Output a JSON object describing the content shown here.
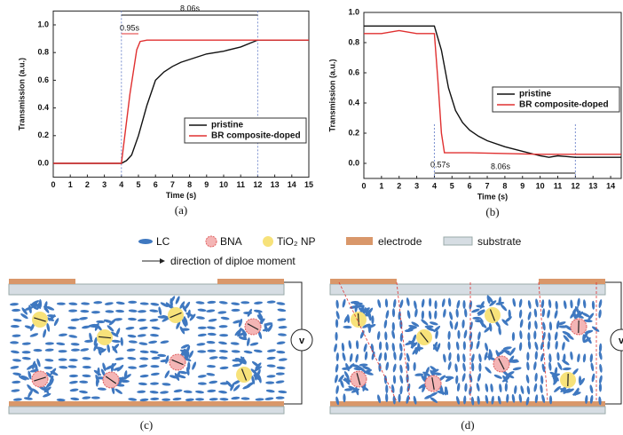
{
  "chart_data": [
    {
      "type": "line",
      "caption": "(a)",
      "xlabel": "Time (s)",
      "ylabel": "Transmission (a.u.)",
      "xlim": [
        0,
        15
      ],
      "xticks": [
        0,
        1,
        2,
        3,
        4,
        5,
        6,
        7,
        8,
        9,
        10,
        11,
        12,
        13,
        14,
        15
      ],
      "ylim": [
        -0.1,
        1.1
      ],
      "yticks": [
        {
          "value": 0,
          "label": "0.0"
        },
        0.2,
        0.4,
        0.6,
        0.8,
        {
          "value": 1,
          "label": "1.0"
        }
      ],
      "legend": "lower right",
      "annotations": [
        "8.06s",
        "0.95s"
      ],
      "series": [
        {
          "name": "pristine",
          "color": "#111111",
          "x": [
            0,
            4,
            4.3,
            4.6,
            5,
            5.5,
            6,
            6.5,
            7,
            7.5,
            8,
            8.5,
            9,
            10,
            11,
            12,
            13,
            15
          ],
          "values": [
            0,
            0,
            0.02,
            0.06,
            0.2,
            0.42,
            0.6,
            0.66,
            0.7,
            0.73,
            0.75,
            0.77,
            0.79,
            0.81,
            0.84,
            0.89,
            0.89,
            0.89
          ]
        },
        {
          "name": "BR composite-doped",
          "color": "#e03030",
          "x": [
            0,
            4,
            4.5,
            4.9,
            5.1,
            5.5,
            9,
            12,
            15
          ],
          "values": [
            0,
            0,
            0.5,
            0.82,
            0.88,
            0.89,
            0.89,
            0.89,
            0.89
          ]
        }
      ]
    },
    {
      "type": "line",
      "caption": "(b)",
      "xlabel": "Time (s)",
      "ylabel": "Transmission (a.u.)",
      "xlim": [
        0,
        14.6
      ],
      "xticks": [
        0,
        1,
        2,
        3,
        4,
        5,
        6,
        7,
        8,
        9,
        10,
        11,
        12,
        13,
        14
      ],
      "ylim": [
        -0.1,
        1.0
      ],
      "yticks": [
        {
          "value": 0,
          "label": "0.0"
        },
        0.2,
        0.4,
        0.6,
        0.8,
        {
          "value": 1,
          "label": "1.0"
        }
      ],
      "legend": "center right",
      "annotations": [
        "0.57s",
        "8.06s"
      ],
      "series": [
        {
          "name": "pristine",
          "color": "#111111",
          "x": [
            0,
            2,
            4,
            4.4,
            4.8,
            5.2,
            5.6,
            6,
            6.5,
            7,
            8,
            9,
            10,
            10.5,
            11,
            12,
            14.6
          ],
          "values": [
            0.91,
            0.91,
            0.91,
            0.75,
            0.5,
            0.35,
            0.27,
            0.22,
            0.18,
            0.15,
            0.11,
            0.08,
            0.05,
            0.04,
            0.05,
            0.04,
            0.04
          ]
        },
        {
          "name": "BR composite-doped",
          "color": "#e03030",
          "x": [
            0,
            1,
            2,
            3,
            4,
            4.2,
            4.4,
            4.57,
            6,
            10,
            14.6
          ],
          "values": [
            0.86,
            0.86,
            0.88,
            0.86,
            0.86,
            0.55,
            0.2,
            0.07,
            0.07,
            0.06,
            0.06
          ]
        }
      ]
    }
  ],
  "diagram": {
    "legend": [
      "LC",
      "BNA",
      "TiO₂ NP",
      "electrode",
      "substrate"
    ],
    "arrow_label": "direction of diploe moment",
    "voltage": [
      "v",
      "v"
    ],
    "captions": [
      "(c)",
      "(d)"
    ]
  }
}
